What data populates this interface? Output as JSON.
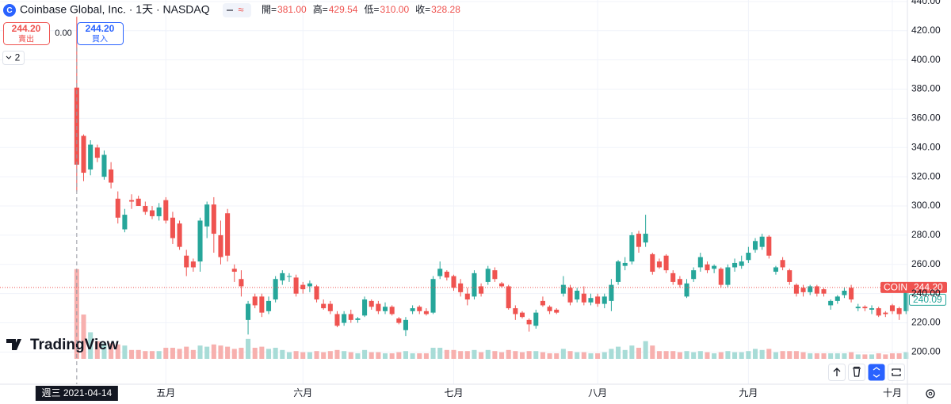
{
  "header": {
    "title": "Coinbase Global, Inc. · 1天 · NASDAQ",
    "logo": "C",
    "chip": "≈",
    "legend": [
      {
        "key": "開=",
        "value": "381.00"
      },
      {
        "key": "高=",
        "value": "429.54"
      },
      {
        "key": "低=",
        "value": "310.00"
      },
      {
        "key": "收=",
        "value": "328.28"
      }
    ],
    "sell": {
      "price": "244.20",
      "label": "賣出"
    },
    "spread": "0.00",
    "buy": {
      "price": "244.20",
      "label": "買入"
    },
    "indicators": "2"
  },
  "brand": "TradingView",
  "crosshair_date": "週三 2021-04-14",
  "price_tags": {
    "symbol": "COIN",
    "last": "244.20",
    "other": "240.09"
  },
  "chart_data": {
    "type": "candlestick",
    "up_color": "#26a69a",
    "down_color": "#ef5350",
    "up_volume_color": "#a8dcd7",
    "down_volume_color": "#f7b0ae",
    "grid": true,
    "xlim": [
      -11.2,
      121.2
    ],
    "xticks": [
      {
        "value": 13,
        "label": "五月"
      },
      {
        "value": 33,
        "label": "六月"
      },
      {
        "value": 55,
        "label": "七月"
      },
      {
        "value": 76,
        "label": "八月"
      },
      {
        "value": 98,
        "label": "九月"
      },
      {
        "value": 119,
        "label": "十月"
      }
    ],
    "ylim": [
      178,
      441
    ],
    "yticks": [
      {
        "value": 200,
        "label": "200.00"
      },
      {
        "value": 220,
        "label": "220.00"
      },
      {
        "value": 240,
        "label": "240.00"
      },
      {
        "value": 260,
        "label": "260.00"
      },
      {
        "value": 280,
        "label": "280.00"
      },
      {
        "value": 300,
        "label": "300.00"
      },
      {
        "value": 320,
        "label": "320.00"
      },
      {
        "value": 340,
        "label": "340.00"
      },
      {
        "value": 360,
        "label": "360.00"
      },
      {
        "value": 380,
        "label": "380.00"
      },
      {
        "value": 400,
        "label": "400.00"
      },
      {
        "value": 420,
        "label": "420.00"
      },
      {
        "value": 440,
        "label": "440.00"
      }
    ],
    "volume_lim": [
      0,
      324
    ],
    "open": [
      381,
      348,
      325,
      340,
      320,
      325,
      305,
      284,
      304,
      305,
      300,
      297,
      293,
      304,
      292,
      288,
      266,
      262,
      262,
      286,
      301,
      280,
      295,
      257,
      250,
      222,
      238,
      238,
      228,
      236,
      249,
      252,
      251,
      246,
      245,
      245,
      233,
      233,
      226,
      220,
      226,
      222,
      225,
      235,
      233,
      228,
      231,
      223,
      215,
      228,
      231,
      228,
      227,
      252,
      255,
      252,
      247,
      240,
      238,
      245,
      248,
      256,
      247,
      245,
      230,
      227,
      222,
      218,
      235,
      231,
      229,
      240,
      244,
      236,
      240,
      234,
      238,
      233,
      235,
      248,
      259,
      262,
      281,
      275,
      267,
      262,
      266,
      254,
      250,
      238,
      250,
      258,
      260,
      257,
      257,
      246,
      258,
      259,
      263,
      270,
      272,
      279,
      255,
      263,
      256,
      246,
      244,
      241,
      245,
      243,
      232,
      235,
      239,
      244,
      230,
      231,
      229,
      230,
      227,
      232,
      230,
      228
    ],
    "high": [
      429.54,
      349,
      345,
      342,
      338,
      330,
      310,
      298,
      308,
      307,
      303,
      300,
      302,
      306,
      296,
      290,
      270,
      264,
      292,
      303,
      306,
      290,
      298,
      260,
      256,
      235,
      240,
      240,
      238,
      252,
      256,
      254,
      253,
      248,
      249,
      246,
      236,
      235,
      228,
      228,
      229,
      224,
      238,
      236,
      235,
      234,
      232,
      224,
      224,
      232,
      232,
      230,
      252,
      262,
      256,
      253,
      250,
      244,
      256,
      247,
      259,
      258,
      248,
      246,
      232,
      228,
      223,
      229,
      238,
      232,
      230,
      252,
      246,
      244,
      245,
      240,
      240,
      240,
      250,
      263,
      265,
      282,
      283,
      294,
      268,
      264,
      267,
      256,
      252,
      250,
      258,
      268,
      262,
      260,
      258,
      260,
      264,
      266,
      272,
      278,
      281,
      280,
      259,
      265,
      257,
      247,
      246,
      246,
      246,
      244,
      236,
      239,
      244,
      246,
      233,
      232,
      232,
      231,
      228,
      233,
      231,
      246
    ],
    "low": [
      310,
      317,
      321,
      330,
      318,
      312,
      288,
      282,
      298,
      300,
      294,
      291,
      290,
      288,
      274,
      270,
      252,
      255,
      255,
      278,
      268,
      260,
      262,
      248,
      238,
      212,
      230,
      224,
      226,
      234,
      246,
      248,
      238,
      240,
      241,
      234,
      229,
      226,
      217,
      218,
      220,
      220,
      224,
      229,
      226,
      226,
      225,
      219,
      211,
      226,
      226,
      225,
      226,
      250,
      249,
      242,
      238,
      232,
      236,
      238,
      246,
      248,
      244,
      229,
      222,
      223,
      214,
      216,
      231,
      226,
      226,
      238,
      232,
      234,
      232,
      232,
      231,
      230,
      228,
      246,
      256,
      260,
      268,
      272,
      253,
      257,
      254,
      246,
      244,
      237,
      248,
      255,
      254,
      254,
      244,
      244,
      255,
      257,
      261,
      268,
      270,
      264,
      253,
      256,
      246,
      238,
      238,
      239,
      238,
      238,
      229,
      233,
      237,
      234,
      228,
      228,
      226,
      224,
      224,
      226,
      222,
      226
    ],
    "close": [
      328.28,
      322.75,
      342,
      333,
      335,
      316,
      292,
      294,
      303,
      300,
      296,
      293,
      299,
      290,
      278,
      272,
      258,
      258,
      290,
      301,
      281,
      265,
      266,
      255,
      245,
      233,
      232,
      227,
      235,
      250,
      254,
      252,
      240,
      243,
      247,
      236,
      230,
      228,
      218,
      226,
      222,
      223,
      236,
      231,
      228,
      231,
      226,
      220,
      222,
      230,
      228,
      226,
      250,
      257,
      251,
      244,
      241,
      236,
      254,
      240,
      257,
      250,
      245,
      230,
      226,
      224,
      219,
      227,
      232,
      228,
      227,
      246,
      234,
      242,
      234,
      237,
      233,
      238,
      246,
      262,
      261,
      280,
      272,
      281,
      255,
      258,
      256,
      248,
      246,
      247,
      256,
      265,
      256,
      259,
      246,
      258,
      261,
      262,
      268,
      276,
      279,
      266,
      258,
      258,
      248,
      240,
      241,
      245,
      240,
      240,
      235,
      238,
      242,
      236,
      231,
      230,
      230,
      225,
      226,
      228,
      226,
      244.2
    ],
    "volume": [
      81,
      40,
      24,
      16,
      14,
      14,
      13,
      12,
      8,
      8,
      7,
      7,
      7,
      10,
      10,
      9,
      11,
      8,
      12,
      11,
      13,
      12,
      11,
      9,
      10,
      18,
      10,
      11,
      9,
      10,
      8,
      6,
      7,
      6,
      6,
      7,
      6,
      7,
      8,
      7,
      6,
      5,
      8,
      6,
      6,
      5,
      5,
      6,
      7,
      5,
      5,
      5,
      10,
      10,
      8,
      8,
      7,
      7,
      8,
      6,
      8,
      7,
      6,
      8,
      7,
      6,
      7,
      7,
      6,
      5,
      5,
      9,
      7,
      6,
      6,
      5,
      5,
      6,
      9,
      11,
      8,
      12,
      10,
      16,
      12,
      7,
      7,
      7,
      6,
      7,
      6,
      7,
      6,
      5,
      6,
      7,
      6,
      6,
      7,
      9,
      8,
      9,
      6,
      7,
      7,
      7,
      6,
      5,
      5,
      5,
      5,
      5,
      5,
      6,
      4,
      4,
      4,
      5,
      4,
      5,
      5,
      6
    ]
  }
}
